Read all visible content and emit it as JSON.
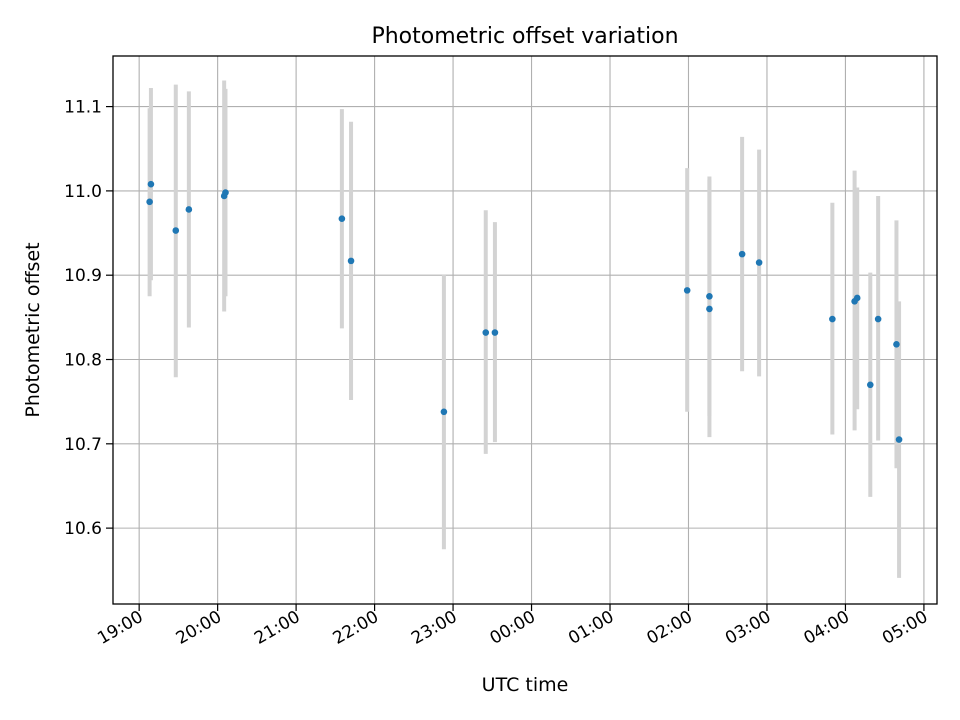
{
  "chart_data": {
    "type": "scatter",
    "title": "Photometric offset variation",
    "xlabel": "UTC time",
    "ylabel": "Photometric offset",
    "x_axis": {
      "kind": "time",
      "range": [
        "18:40",
        "05:10"
      ],
      "ticks": [
        "19:00",
        "20:00",
        "21:00",
        "22:00",
        "23:00",
        "00:00",
        "01:00",
        "02:00",
        "03:00",
        "04:00",
        "05:00"
      ]
    },
    "y_axis": {
      "range": [
        10.51,
        11.16
      ],
      "ticks": [
        "10.6",
        "10.7",
        "10.8",
        "10.9",
        "11.0",
        "11.1"
      ]
    },
    "grid": true,
    "marker_color": "#1f77b4",
    "errorbar_color": "#d3d3d3",
    "points": [
      {
        "x": "19:08",
        "y": 10.987,
        "err_low": 10.875,
        "err_high": 11.098
      },
      {
        "x": "19:09",
        "y": 11.008,
        "err_low": 10.894,
        "err_high": 11.122
      },
      {
        "x": "19:28",
        "y": 10.953,
        "err_low": 10.779,
        "err_high": 11.126
      },
      {
        "x": "19:38",
        "y": 10.978,
        "err_low": 10.838,
        "err_high": 11.118
      },
      {
        "x": "20:05",
        "y": 10.994,
        "err_low": 10.857,
        "err_high": 11.131
      },
      {
        "x": "20:06",
        "y": 10.998,
        "err_low": 10.875,
        "err_high": 11.121
      },
      {
        "x": "21:35",
        "y": 10.967,
        "err_low": 10.837,
        "err_high": 11.097
      },
      {
        "x": "21:42",
        "y": 10.917,
        "err_low": 10.752,
        "err_high": 11.082
      },
      {
        "x": "22:53",
        "y": 10.738,
        "err_low": 10.575,
        "err_high": 10.901
      },
      {
        "x": "23:25",
        "y": 10.832,
        "err_low": 10.688,
        "err_high": 10.977
      },
      {
        "x": "23:32",
        "y": 10.832,
        "err_low": 10.702,
        "err_high": 10.963
      },
      {
        "x": "01:59",
        "y": 10.882,
        "err_low": 10.738,
        "err_high": 11.027
      },
      {
        "x": "02:16",
        "y": 10.875,
        "err_low": 10.733,
        "err_high": 11.017
      },
      {
        "x": "02:16",
        "y": 10.86,
        "err_low": 10.708,
        "err_high": 11.013
      },
      {
        "x": "02:41",
        "y": 10.925,
        "err_low": 10.786,
        "err_high": 11.064
      },
      {
        "x": "02:54",
        "y": 10.915,
        "err_low": 10.78,
        "err_high": 11.049
      },
      {
        "x": "03:50",
        "y": 10.848,
        "err_low": 10.711,
        "err_high": 10.986
      },
      {
        "x": "04:07",
        "y": 10.869,
        "err_low": 10.716,
        "err_high": 11.024
      },
      {
        "x": "04:09",
        "y": 10.873,
        "err_low": 10.741,
        "err_high": 11.004
      },
      {
        "x": "04:19",
        "y": 10.77,
        "err_low": 10.637,
        "err_high": 10.903
      },
      {
        "x": "04:25",
        "y": 10.848,
        "err_low": 10.704,
        "err_high": 10.994
      },
      {
        "x": "04:39",
        "y": 10.818,
        "err_low": 10.671,
        "err_high": 10.965
      },
      {
        "x": "04:41",
        "y": 10.705,
        "err_low": 10.541,
        "err_high": 10.869
      }
    ]
  }
}
